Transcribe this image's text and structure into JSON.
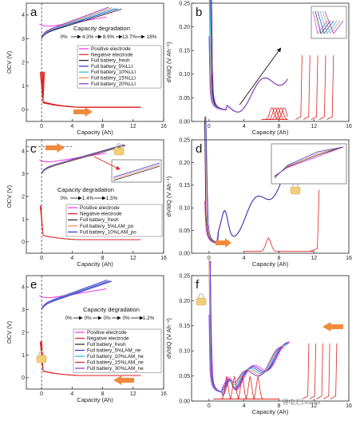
{
  "chart_data": [
    {
      "type": "line",
      "panel": "a",
      "xlabel": "Capacity (Ah)",
      "ylabel": "OCV (V)",
      "xlim": [
        -2,
        16
      ],
      "ylim": [
        -0.5,
        4.5
      ],
      "xticks": [
        0,
        4,
        8,
        12,
        16
      ],
      "yticks": [
        0,
        1,
        2,
        3,
        4
      ],
      "legend": [
        "Positive electrode",
        "Negative electrode",
        "Full battery_fresh",
        "Full battery_5%LLI",
        "Full battery_10%LLI",
        "Full battery_15%LLI",
        "Full battery_20%LLI"
      ],
      "degradation_title": "Capacity degradation",
      "degradation_steps": [
        "0%",
        "4.3%",
        "8.9%",
        "13.7%",
        "18%"
      ]
    },
    {
      "type": "line",
      "panel": "b",
      "xlabel": "Capacity (Ah)",
      "ylabel": "dV/dQ (V Ah⁻¹)",
      "xlim": [
        -2,
        16
      ],
      "ylim": [
        0,
        0.25
      ],
      "xticks": [
        0,
        4,
        8,
        12,
        16
      ],
      "yticks": [
        "0.00",
        "0.05",
        "0.10",
        "0.15",
        "0.20",
        "0.25"
      ]
    },
    {
      "type": "line",
      "panel": "c",
      "xlabel": "Capacity (Ah)",
      "ylabel": "OCV (V)",
      "xlim": [
        -2,
        16
      ],
      "ylim": [
        -0.5,
        4.5
      ],
      "xticks": [
        0,
        4,
        8,
        12,
        16
      ],
      "yticks": [
        0,
        1,
        2,
        3,
        4
      ],
      "legend": [
        "Positive electrode",
        "Negative electrode",
        "Full battery_fresh",
        "Full battery_5%LAM_po",
        "Full battery_10%LAM_po"
      ],
      "degradation_title": "Capacity degradation",
      "degradation_steps": [
        "0%",
        "1.4%",
        "1.5%"
      ]
    },
    {
      "type": "line",
      "panel": "d",
      "xlabel": "Capacity (Ah)",
      "ylabel": "dV/dQ (V Ah⁻¹)",
      "xlim": [
        -2,
        16
      ],
      "ylim": [
        0,
        0.25
      ],
      "xticks": [
        0,
        4,
        8,
        12,
        16
      ],
      "yticks": [
        "0.00",
        "0.05",
        "0.10",
        "0.15",
        "0.20",
        "0.25"
      ]
    },
    {
      "type": "line",
      "panel": "e",
      "xlabel": "Capacity (Ah)",
      "ylabel": "OCV (V)",
      "xlim": [
        -2,
        16
      ],
      "ylim": [
        -0.5,
        4.5
      ],
      "xticks": [
        0,
        4,
        8,
        12,
        16
      ],
      "yticks": [
        0,
        1,
        2,
        3,
        4
      ],
      "legend": [
        "Positive electrode",
        "Negative electrode",
        "Full battery_fresh",
        "Full battery_5%LAM_ne",
        "Full battery_10%LAM_ne",
        "Full battery_15%LAM_ne",
        "Full battery_30%LAM_ne"
      ],
      "degradation_title": "Capacity degradation",
      "degradation_steps": [
        "0%",
        "0%",
        "0%",
        "0%",
        "1.2%"
      ]
    },
    {
      "type": "line",
      "panel": "f",
      "xlabel": "Capacity (Ah)",
      "ylabel": "dV/dQ (V Ah⁻¹)",
      "xlim": [
        -2,
        16
      ],
      "ylim": [
        0,
        0.25
      ],
      "xticks": [
        0,
        4,
        8,
        12,
        16
      ],
      "yticks": [
        "0.00",
        "0.05",
        "0.10",
        "0.15",
        "0.20",
        "0.25"
      ]
    }
  ],
  "watermark": "锂电汇Leader",
  "colors": {
    "positive": "#ee33ee",
    "negative": "#dd2222",
    "fresh": "#222222",
    "deg": [
      "#3333cc",
      "#22bbdd",
      "#ee8855",
      "#8833cc"
    ],
    "arrow": "#f08a3c"
  }
}
